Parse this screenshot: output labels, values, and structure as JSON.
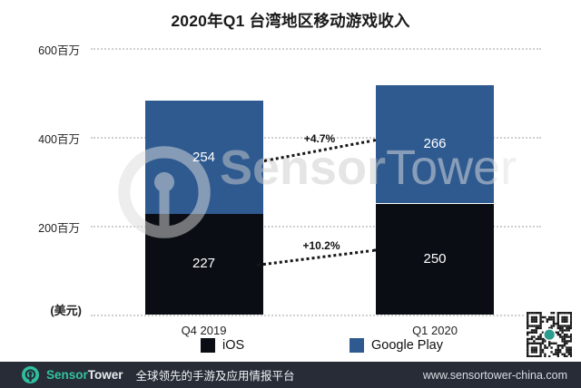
{
  "title": "2020年Q1 台湾地区移动游戏收入",
  "chart_data": {
    "type": "bar",
    "stacked": true,
    "title": "2020年Q1 台湾地区移动游戏收入",
    "unit_label": "(美元)",
    "categories": [
      "Q4 2019",
      "Q1 2020"
    ],
    "series": [
      {
        "name": "iOS",
        "color": "#0a0e14",
        "values": [
          227,
          250
        ]
      },
      {
        "name": "Google Play",
        "color": "#2f5a90",
        "values": [
          254,
          266
        ]
      }
    ],
    "totals": [
      481,
      516
    ],
    "ylim": [
      0,
      600
    ],
    "yticks": [
      {
        "label": "600百万",
        "value": 600
      },
      {
        "label": "400百万",
        "value": 400
      },
      {
        "label": "200百万",
        "value": 200
      }
    ],
    "grid": "dotted-horizontal",
    "legend_position": "bottom",
    "annotations": [
      {
        "label": "+4.7%",
        "applies_to": "Google Play",
        "from": 254,
        "to": 266
      },
      {
        "label": "+10.2%",
        "applies_to": "iOS",
        "from": 227,
        "to": 250
      }
    ]
  },
  "watermark": {
    "sensor": "Sensor",
    "tower": "Tower"
  },
  "footer": {
    "brand_sensor": "Sensor",
    "brand_tower": "Tower",
    "tagline": "全球领先的手游及应用情报平台",
    "url": "www.sensortower-china.com"
  },
  "colors": {
    "ios_bar": "#0a0e14",
    "google_play_bar": "#2f5a90",
    "accent_teal": "#2fbf9f",
    "footer_background": "#272c37",
    "qr_center": "#2a9d8f"
  }
}
